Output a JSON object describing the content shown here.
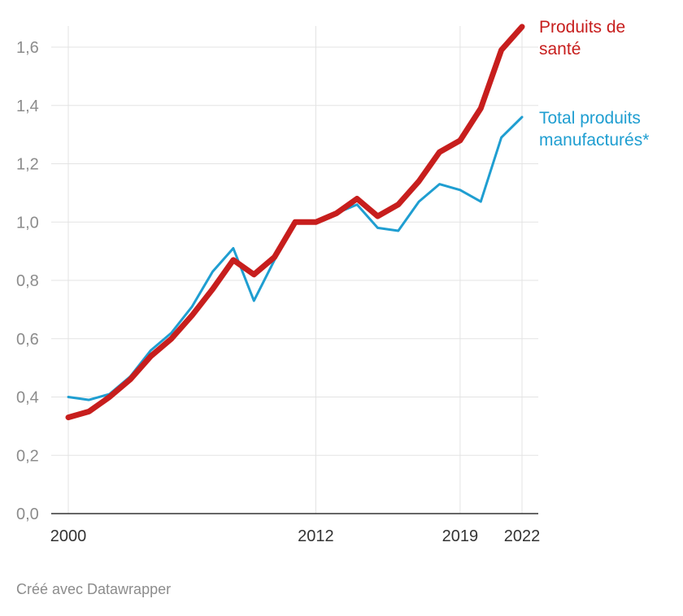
{
  "chart_data": {
    "type": "line",
    "x": [
      2000,
      2001,
      2002,
      2003,
      2004,
      2005,
      2006,
      2007,
      2008,
      2009,
      2010,
      2011,
      2012,
      2013,
      2014,
      2015,
      2016,
      2017,
      2018,
      2019,
      2020,
      2021,
      2022
    ],
    "series": [
      {
        "name": "Total produits manufacturés*",
        "color": "#1f9ed1",
        "values": [
          0.4,
          0.39,
          0.41,
          0.47,
          0.56,
          0.62,
          0.71,
          0.83,
          0.91,
          0.73,
          0.87,
          1.0,
          1.0,
          1.03,
          1.06,
          0.98,
          0.97,
          1.07,
          1.13,
          1.11,
          1.07,
          1.29,
          1.36
        ]
      },
      {
        "name": "Produits de santé",
        "color": "#c71e1d",
        "values": [
          0.33,
          0.35,
          0.4,
          0.46,
          0.54,
          0.6,
          0.68,
          0.77,
          0.87,
          0.82,
          0.88,
          1.0,
          1.0,
          1.03,
          1.08,
          1.02,
          1.06,
          1.14,
          1.24,
          1.28,
          1.39,
          1.59,
          1.67
        ]
      }
    ],
    "labels": [
      {
        "series": 1,
        "lines": [
          "Produits de",
          "santé"
        ]
      },
      {
        "series": 0,
        "lines": [
          "Total produits",
          "manufacturés*"
        ]
      }
    ],
    "yticks": [
      "0,0",
      "0,2",
      "0,4",
      "0,6",
      "0,8",
      "1,0",
      "1,2",
      "1,4",
      "1,6"
    ],
    "ytick_values": [
      0,
      0.2,
      0.4,
      0.6,
      0.8,
      1.0,
      1.2,
      1.4,
      1.6
    ],
    "xticks": [
      "2000",
      "2012",
      "2019",
      "2022"
    ],
    "xtick_values": [
      2000,
      2012,
      2019,
      2022
    ],
    "ylim": [
      0,
      1.6
    ],
    "xlim": [
      2000,
      2022
    ],
    "grid": true,
    "title": "",
    "xlabel": "",
    "ylabel": ""
  },
  "footer": {
    "credit": "Créé avec Datawrapper"
  }
}
